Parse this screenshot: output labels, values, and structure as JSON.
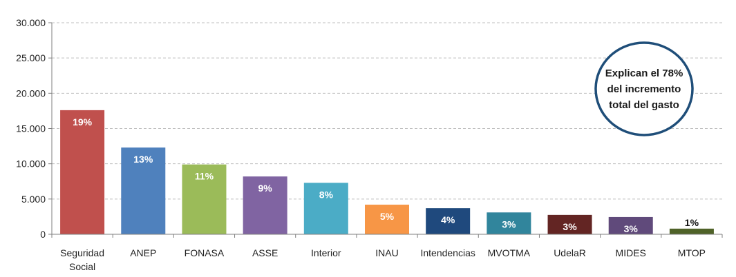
{
  "chart_data": {
    "type": "bar",
    "title": "",
    "xlabel": "",
    "ylabel": "",
    "ylim": [
      0,
      30000
    ],
    "yticks": [
      0,
      5000,
      10000,
      15000,
      20000,
      25000,
      30000
    ],
    "ytick_labels": [
      "0",
      "5.000",
      "10.000",
      "15.000",
      "20.000",
      "25.000",
      "30.000"
    ],
    "grid": true,
    "categories": [
      [
        "Seguridad",
        "Social"
      ],
      [
        "ANEP"
      ],
      [
        "FONASA"
      ],
      [
        "ASSE"
      ],
      [
        "Interior"
      ],
      [
        "INAU"
      ],
      [
        "Intendencias"
      ],
      [
        "MVOTMA"
      ],
      [
        "UdelaR"
      ],
      [
        "MIDES"
      ],
      [
        "MTOP"
      ]
    ],
    "values": [
      17600,
      12300,
      9900,
      8200,
      7300,
      4200,
      3700,
      3100,
      2750,
      2450,
      800
    ],
    "data_labels": [
      "19%",
      "13%",
      "11%",
      "9%",
      "8%",
      "5%",
      "4%",
      "3%",
      "3%",
      "3%",
      "1%"
    ],
    "colors": [
      "#c0504d",
      "#4f81bd",
      "#9bbb59",
      "#8064a2",
      "#4bacc6",
      "#f79646",
      "#1f497d",
      "#31859c",
      "#632523",
      "#604a7b",
      "#4f6228"
    ],
    "label_colors": [
      "#ffffff",
      "#ffffff",
      "#ffffff",
      "#ffffff",
      "#ffffff",
      "#ffffff",
      "#ffffff",
      "#ffffff",
      "#ffffff",
      "#ffffff",
      "#111111"
    ],
    "annotation": {
      "lines": [
        "Explican el 78%",
        "del incremento",
        "total del gasto"
      ],
      "border_color": "#1f4e79"
    }
  }
}
